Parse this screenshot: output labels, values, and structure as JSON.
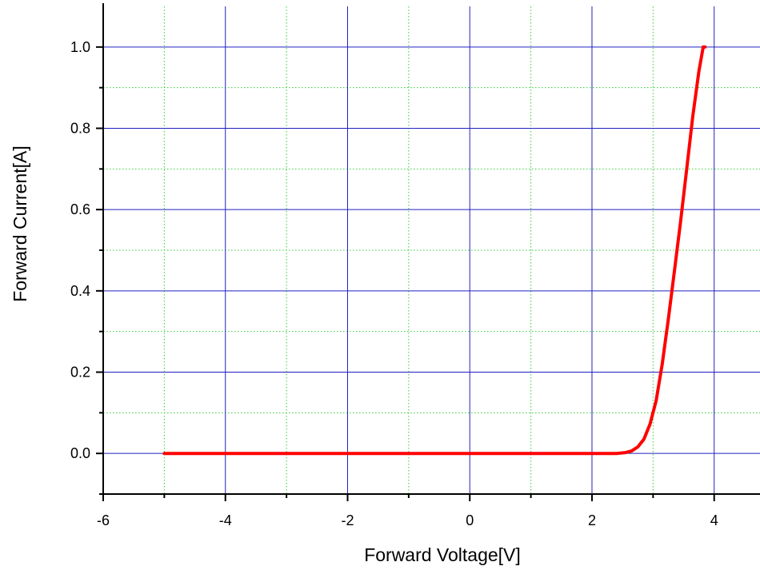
{
  "chart_data": {
    "type": "line",
    "xlabel": "Forward Voltage[V]",
    "ylabel": "Forward Current[A]",
    "xlim": [
      -6,
      4.75
    ],
    "ylim": [
      -0.1,
      1.1
    ],
    "x_ticks": [
      -6,
      -4,
      -2,
      0,
      2,
      4
    ],
    "x_tick_labels": [
      "-6",
      "-4",
      "-2",
      "0",
      "2",
      "4"
    ],
    "x_minor_ticks": [
      -5,
      -3,
      -1,
      1,
      3
    ],
    "y_ticks": [
      0.0,
      0.2,
      0.4,
      0.6,
      0.8,
      1.0
    ],
    "y_tick_labels": [
      "0.0",
      "0.2",
      "0.4",
      "0.6",
      "0.8",
      "1.0"
    ],
    "y_minor_ticks": [
      -0.1,
      0.1,
      0.3,
      0.5,
      0.7,
      0.9
    ],
    "grid": true,
    "colors": {
      "series": "#ff0000",
      "major_grid": "#2020c0",
      "minor_grid": "#33cc33",
      "axis": "#000000"
    },
    "series": [
      {
        "x": [
          -5.0,
          -4.0,
          -3.0,
          -2.0,
          -1.0,
          0.0,
          1.0,
          2.0,
          2.4,
          2.55,
          2.65,
          2.75,
          2.85,
          2.95,
          3.05,
          3.15,
          3.25,
          3.35,
          3.45,
          3.55,
          3.65,
          3.75,
          3.82,
          3.83,
          3.85
        ],
        "y": [
          0.0,
          0.0,
          0.0,
          0.0,
          0.0,
          0.0,
          0.0,
          0.0,
          0.0,
          0.002,
          0.006,
          0.016,
          0.035,
          0.072,
          0.13,
          0.22,
          0.33,
          0.45,
          0.57,
          0.7,
          0.83,
          0.94,
          1.0,
          1.0,
          1.0
        ]
      }
    ]
  }
}
